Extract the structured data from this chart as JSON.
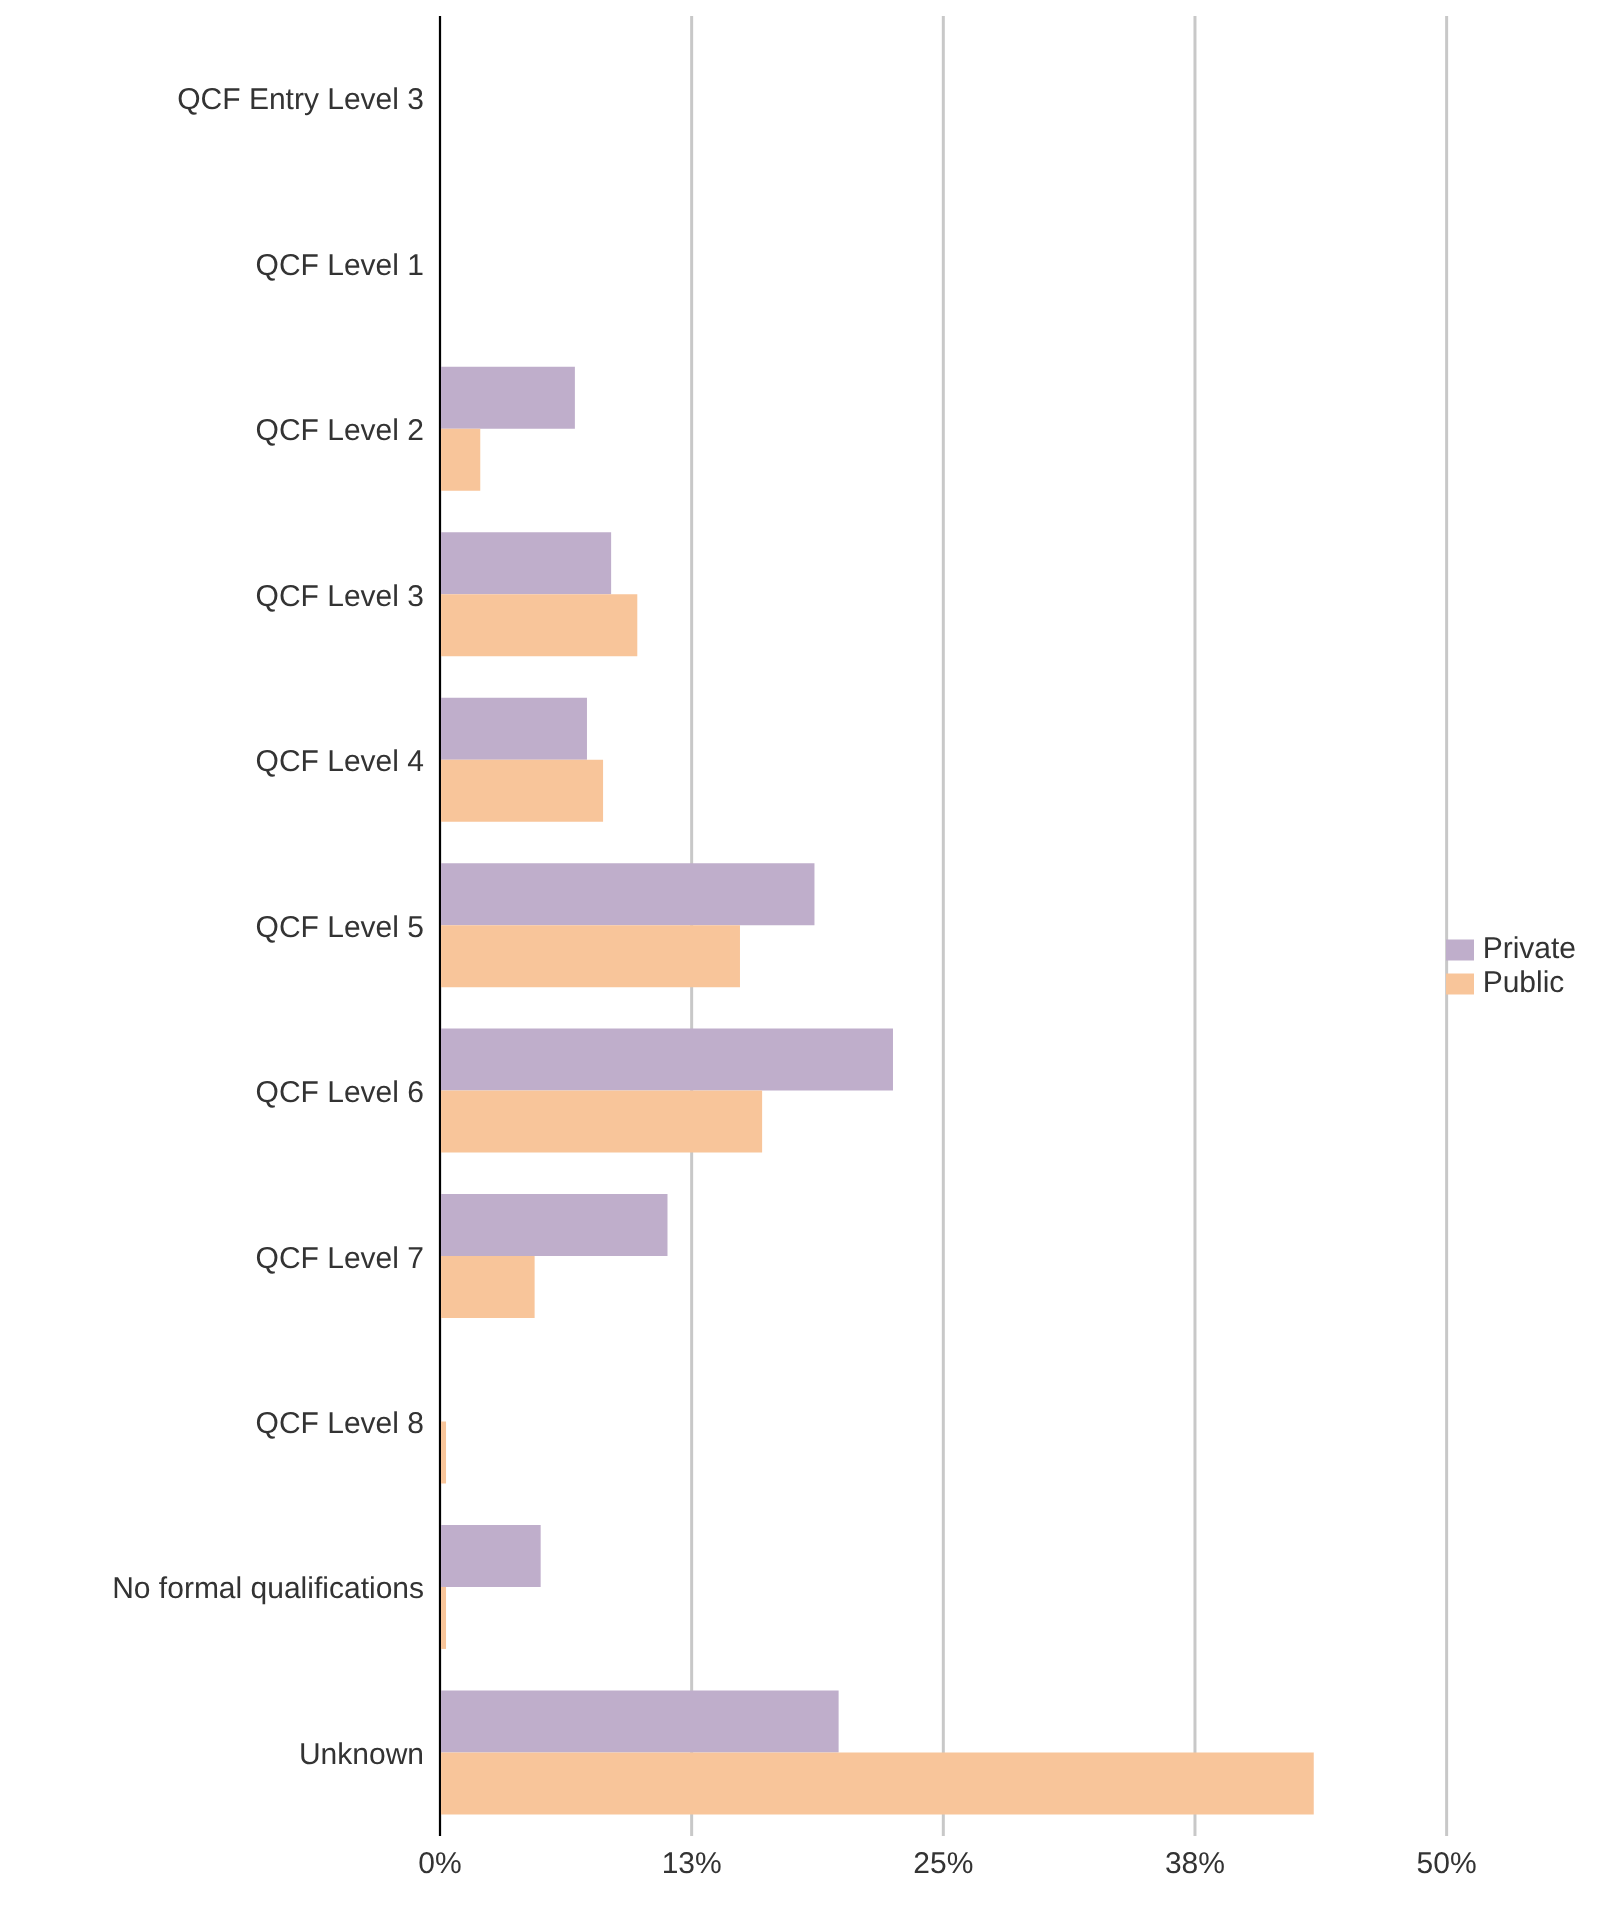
{
  "chart_data": {
    "type": "bar",
    "orientation": "horizontal",
    "categories": [
      "QCF Entry Level 3",
      "QCF Level 1",
      "QCF Level 2",
      "QCF Level 3",
      "QCF Level 4",
      "QCF Level 5",
      "QCF Level 6",
      "QCF Level 7",
      "QCF Level 8",
      "No formal qualifications",
      "Unknown"
    ],
    "series": [
      {
        "name": "Private",
        "color": "#bfaecb",
        "values": [
          0,
          0,
          6.7,
          8.5,
          7.3,
          18.6,
          22.5,
          11.3,
          0,
          5.0,
          19.8
        ]
      },
      {
        "name": "Public",
        "color": "#f8c59a",
        "values": [
          0,
          0,
          2.0,
          9.8,
          8.1,
          14.9,
          16.0,
          4.7,
          0.3,
          0.3,
          43.4
        ]
      }
    ],
    "xlim": [
      0,
      50
    ],
    "xticks": [
      {
        "value": 0,
        "label": "0%"
      },
      {
        "value": 12.5,
        "label": "13%"
      },
      {
        "value": 25,
        "label": "25%"
      },
      {
        "value": 37.5,
        "label": "38%"
      },
      {
        "value": 50,
        "label": "50%"
      }
    ],
    "grid": "x",
    "legend": "right"
  }
}
